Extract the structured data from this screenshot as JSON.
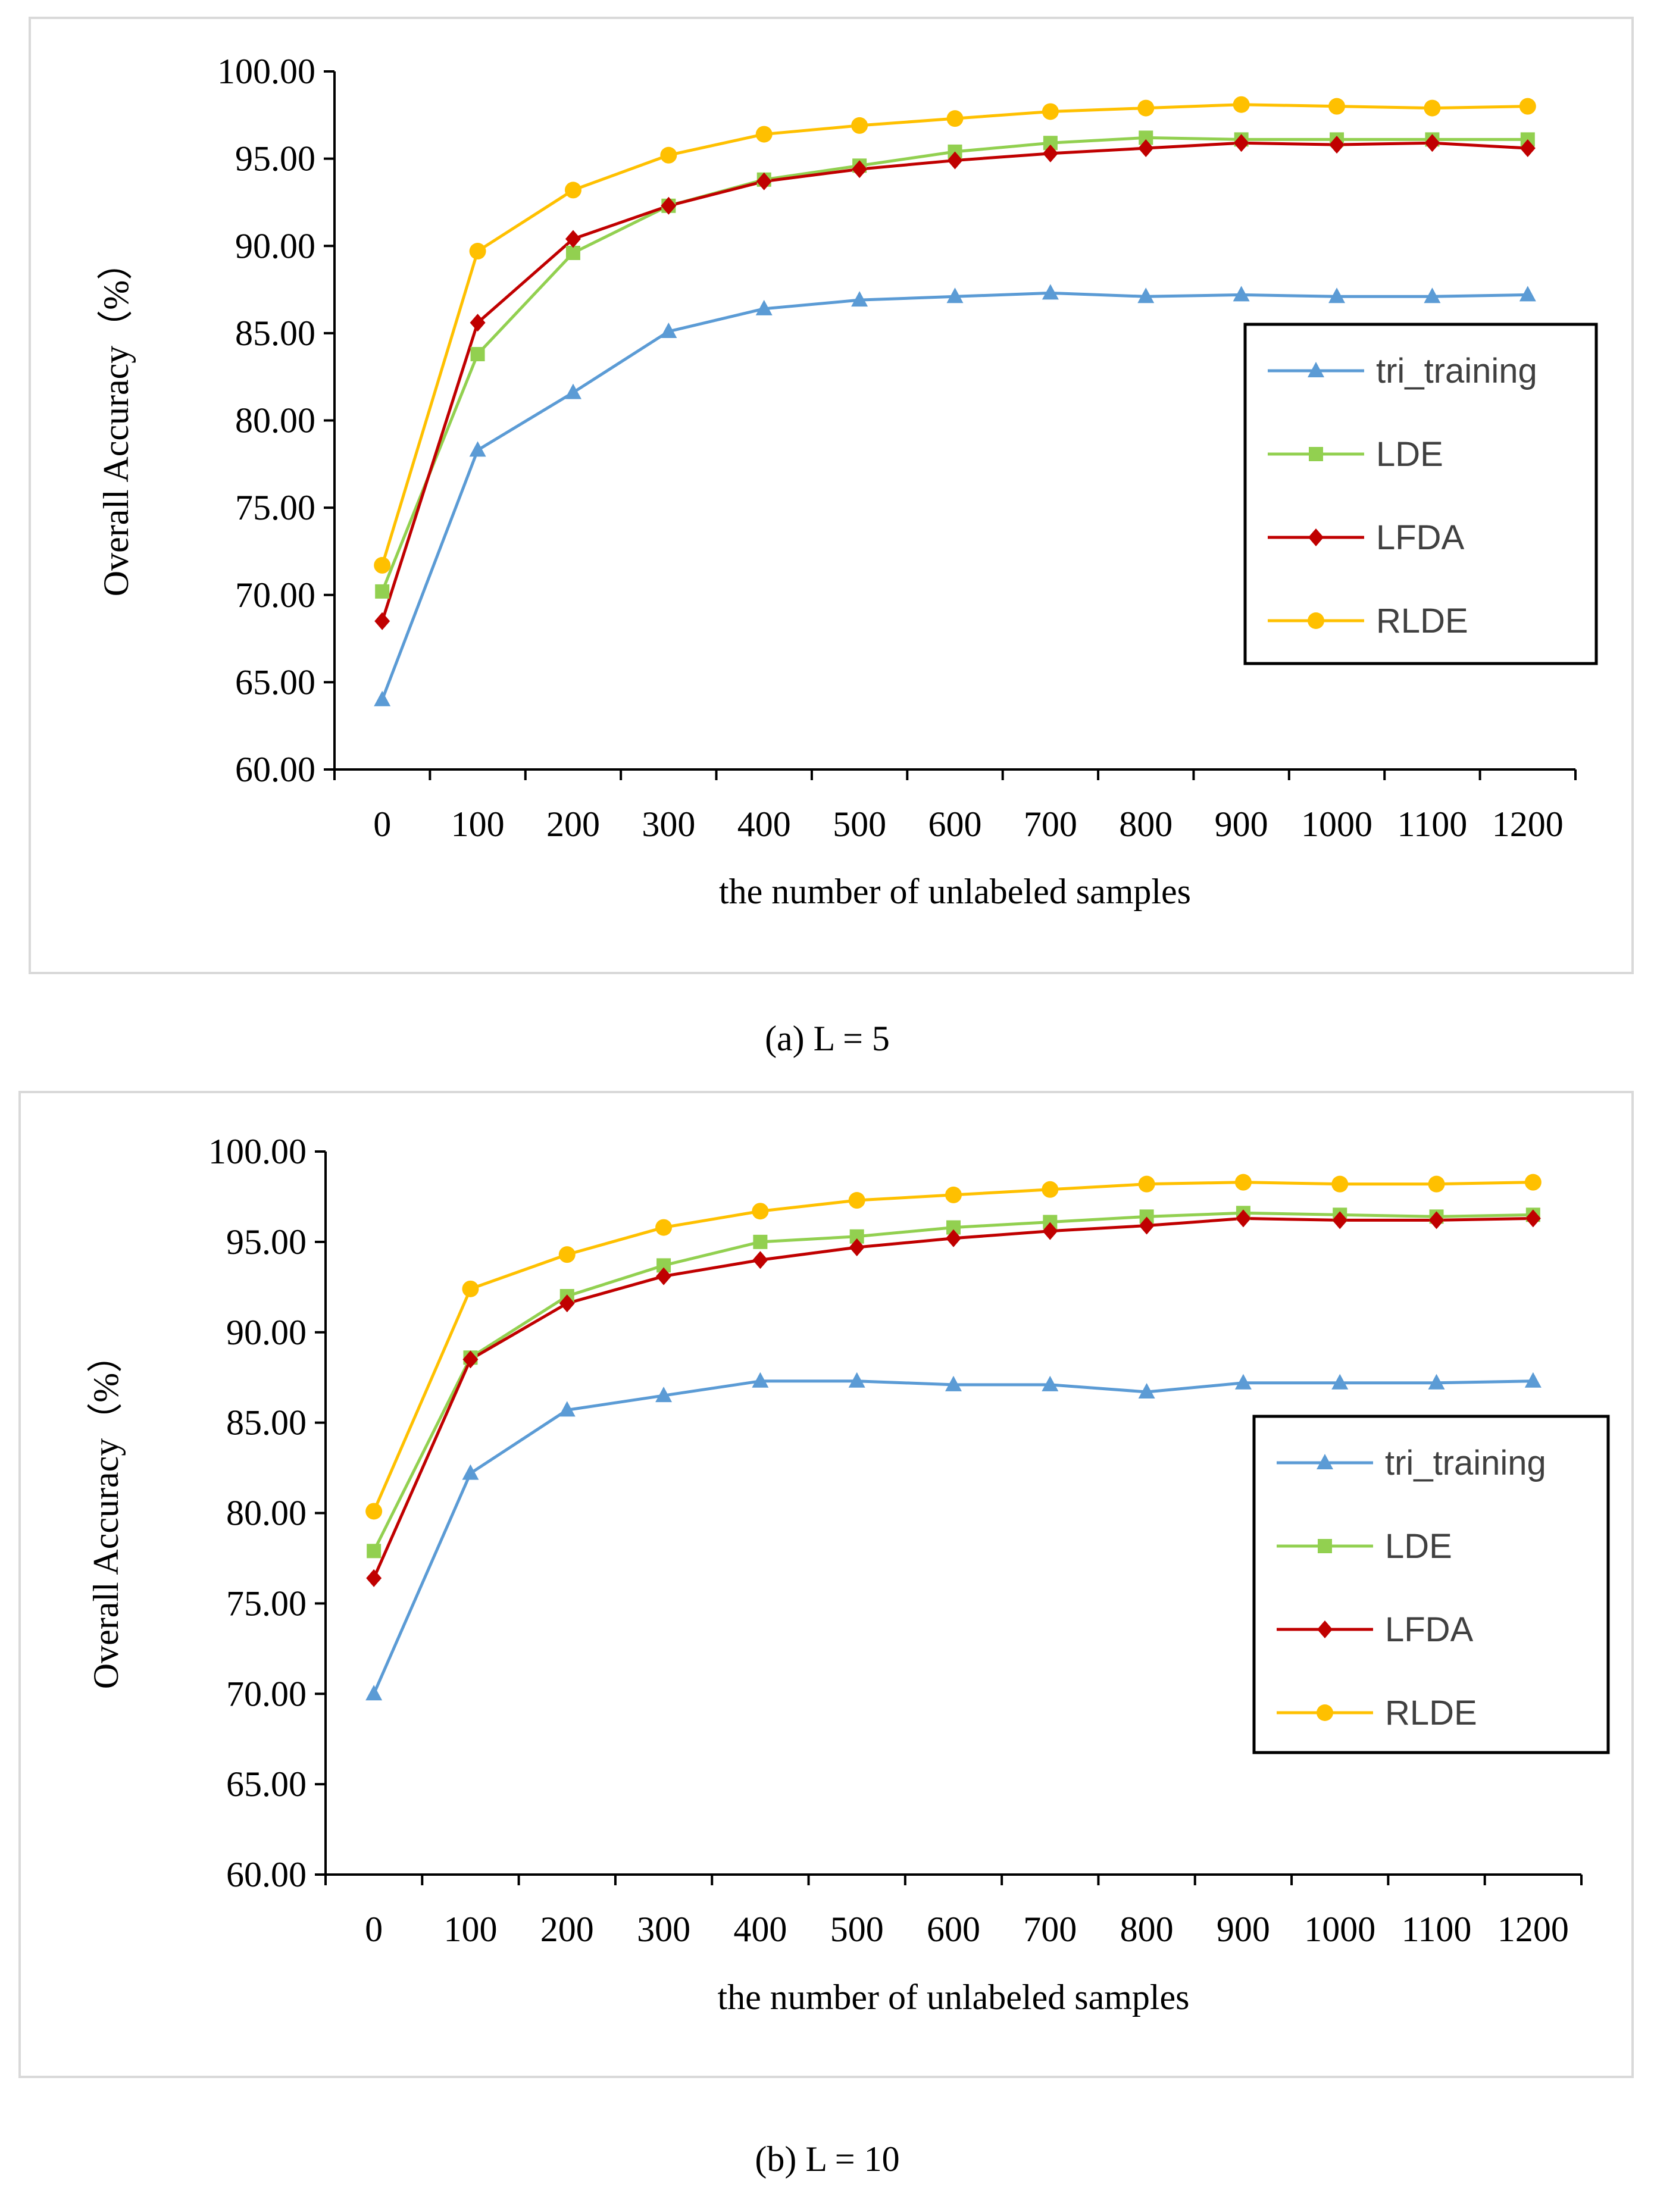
{
  "chart_data": [
    {
      "type": "line",
      "caption": "(a) L = 5",
      "categories": [
        "0",
        "100",
        "200",
        "300",
        "400",
        "500",
        "600",
        "700",
        "800",
        "900",
        "1000",
        "1100",
        "1200"
      ],
      "xlabel": "the number of unlabeled samples",
      "ylabel": "Overall Accuracy（%）",
      "ylim": [
        60,
        100
      ],
      "yticks": [
        "60.00",
        "65.00",
        "70.00",
        "75.00",
        "80.00",
        "85.00",
        "90.00",
        "95.00",
        "100.00"
      ],
      "legend_position": "right",
      "series": [
        {
          "name": "tri_training",
          "color": "#5b9bd5",
          "marker": "triangle",
          "values": [
            64.0,
            78.3,
            81.6,
            85.1,
            86.4,
            86.9,
            87.1,
            87.3,
            87.1,
            87.2,
            87.1,
            87.1,
            87.2
          ]
        },
        {
          "name": "LDE",
          "color": "#92d050",
          "marker": "square",
          "values": [
            70.2,
            83.8,
            89.6,
            92.3,
            93.8,
            94.6,
            95.4,
            95.9,
            96.2,
            96.1,
            96.1,
            96.1,
            96.1
          ]
        },
        {
          "name": "LFDA",
          "color": "#c00000",
          "marker": "diamond",
          "values": [
            68.5,
            85.6,
            90.4,
            92.3,
            93.7,
            94.4,
            94.9,
            95.3,
            95.6,
            95.9,
            95.8,
            95.9,
            95.6
          ]
        },
        {
          "name": "RLDE",
          "color": "#ffc000",
          "marker": "circle",
          "values": [
            71.7,
            89.7,
            93.2,
            95.2,
            96.4,
            96.9,
            97.3,
            97.7,
            97.9,
            98.1,
            98.0,
            97.9,
            98.0
          ]
        }
      ]
    },
    {
      "type": "line",
      "caption": "(b) L = 10",
      "categories": [
        "0",
        "100",
        "200",
        "300",
        "400",
        "500",
        "600",
        "700",
        "800",
        "900",
        "1000",
        "1100",
        "1200"
      ],
      "xlabel": "the number of unlabeled samples",
      "ylabel": "Overall Accuracy（%）",
      "ylim": [
        60,
        100
      ],
      "yticks": [
        "60.00",
        "65.00",
        "70.00",
        "75.00",
        "80.00",
        "85.00",
        "90.00",
        "95.00",
        "100.00"
      ],
      "legend_position": "right",
      "series": [
        {
          "name": "tri_training",
          "color": "#5b9bd5",
          "marker": "triangle",
          "values": [
            70.0,
            82.2,
            85.7,
            86.5,
            87.3,
            87.3,
            87.1,
            87.1,
            86.7,
            87.2,
            87.2,
            87.2,
            87.3
          ]
        },
        {
          "name": "LDE",
          "color": "#92d050",
          "marker": "square",
          "values": [
            77.9,
            88.6,
            92.0,
            93.7,
            95.0,
            95.3,
            95.8,
            96.1,
            96.4,
            96.6,
            96.5,
            96.4,
            96.5
          ]
        },
        {
          "name": "LFDA",
          "color": "#c00000",
          "marker": "diamond",
          "values": [
            76.4,
            88.5,
            91.6,
            93.1,
            94.0,
            94.7,
            95.2,
            95.6,
            95.9,
            96.3,
            96.2,
            96.2,
            96.3
          ]
        },
        {
          "name": "RLDE",
          "color": "#ffc000",
          "marker": "circle",
          "values": [
            80.1,
            92.4,
            94.3,
            95.8,
            96.7,
            97.3,
            97.6,
            97.9,
            98.2,
            98.3,
            98.2,
            98.2,
            98.3
          ]
        }
      ]
    }
  ]
}
